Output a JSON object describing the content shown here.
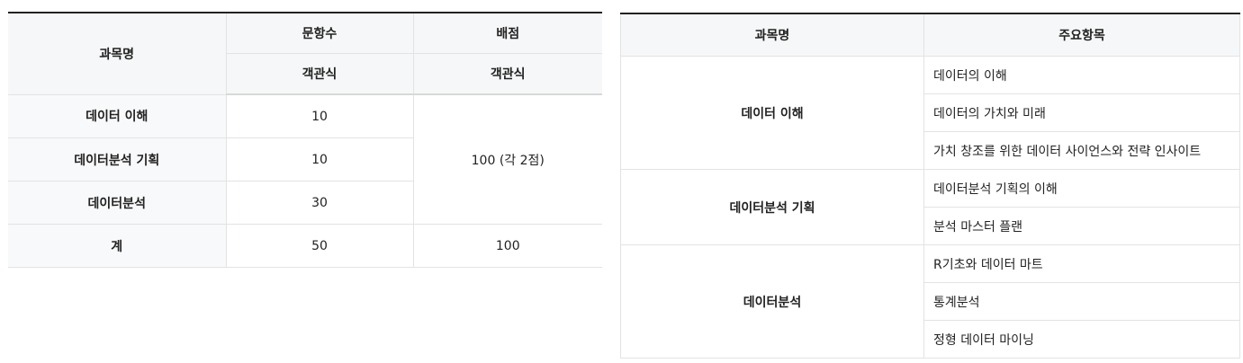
{
  "exam_table": {
    "headers": {
      "subject": "과목명",
      "question_count": "문항수",
      "score": "배점",
      "qc_type": "객관식",
      "score_type": "객관식"
    },
    "rows": [
      {
        "subject": "데이터 이해",
        "count": "10"
      },
      {
        "subject": "데이터분석 기획",
        "count": "10"
      },
      {
        "subject": "데이터분석",
        "count": "30"
      }
    ],
    "merged_score": "100 (각 2점)",
    "total": {
      "label": "계",
      "count": "50",
      "score": "100"
    }
  },
  "content_table": {
    "headers": {
      "subject": "과목명",
      "items": "주요항목"
    },
    "groups": [
      {
        "subject": "데이터 이해",
        "items": [
          "데이터의 이해",
          "데이터의 가치와 미래",
          "가치 창조를 위한 데이터 사이언스와 전략 인사이트"
        ]
      },
      {
        "subject": "데이터분석 기획",
        "items": [
          "데이터분석 기획의 이해",
          "분석 마스터 플랜"
        ]
      },
      {
        "subject": "데이터분석",
        "items": [
          "R기초와 데이터 마트",
          "통계분석",
          "정형 데이터 마이닝"
        ]
      }
    ]
  }
}
